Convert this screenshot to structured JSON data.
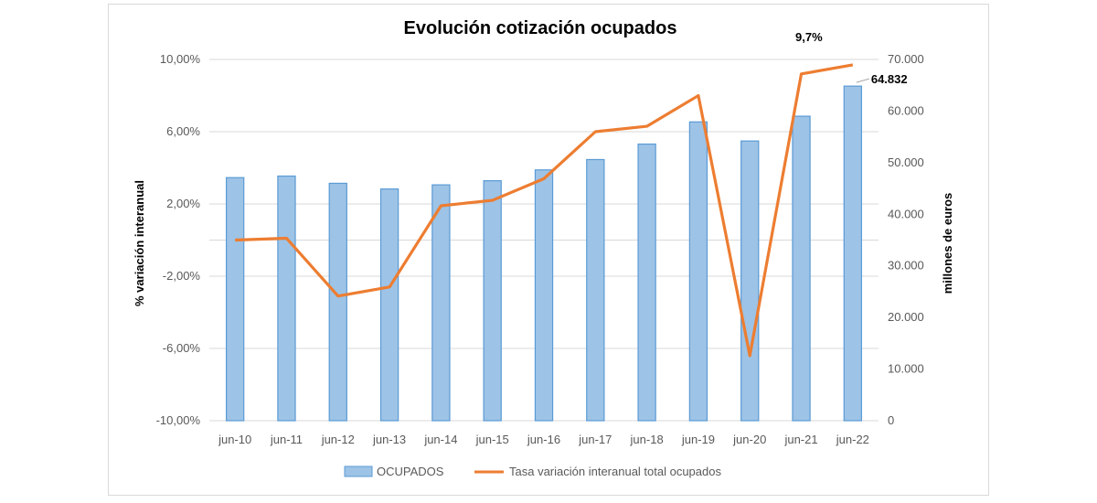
{
  "chart_data": {
    "type": "bar+line",
    "title": "Evolución cotización ocupados",
    "categories": [
      "jun-10",
      "jun-11",
      "jun-12",
      "jun-13",
      "jun-14",
      "jun-15",
      "jun-16",
      "jun-17",
      "jun-18",
      "jun-19",
      "jun-20",
      "jun-21",
      "jun-22"
    ],
    "series": [
      {
        "name": "OCUPADOS",
        "kind": "bar",
        "axis": "right",
        "color": "#9dc3e6",
        "border": "#5b9bd5",
        "values": [
          47100,
          47400,
          46000,
          44900,
          45700,
          46500,
          48600,
          50600,
          53600,
          57900,
          54200,
          59000,
          64832
        ]
      },
      {
        "name": "Tasa variación interanual total ocupados",
        "kind": "line",
        "axis": "left",
        "color": "#ed7d31",
        "values": [
          0.0,
          0.1,
          -3.1,
          -2.6,
          1.9,
          2.2,
          3.4,
          6.0,
          6.3,
          8.0,
          -6.4,
          9.2,
          9.7
        ]
      }
    ],
    "left_axis": {
      "label": "% variación interanual",
      "min": -10,
      "max": 10,
      "ticks": [
        -10,
        -6,
        -2,
        2,
        6,
        10
      ],
      "tick_labels": [
        "-10,00%",
        "-6,00%",
        "-2,00%",
        "2,00%",
        "6,00%",
        "10,00%"
      ]
    },
    "right_axis": {
      "label": "millones de euros",
      "min": 0,
      "max": 70000,
      "ticks": [
        0,
        10000,
        20000,
        30000,
        40000,
        50000,
        60000,
        70000
      ],
      "tick_labels": [
        "0",
        "10.000",
        "20.000",
        "30.000",
        "40.000",
        "50.000",
        "60.000",
        "70.000"
      ]
    },
    "annotations": [
      {
        "text": "9,7%",
        "series": 1,
        "index": 12
      },
      {
        "text": "64.832",
        "series": 0,
        "index": 12
      }
    ],
    "grid": true,
    "legend": "bottom"
  }
}
